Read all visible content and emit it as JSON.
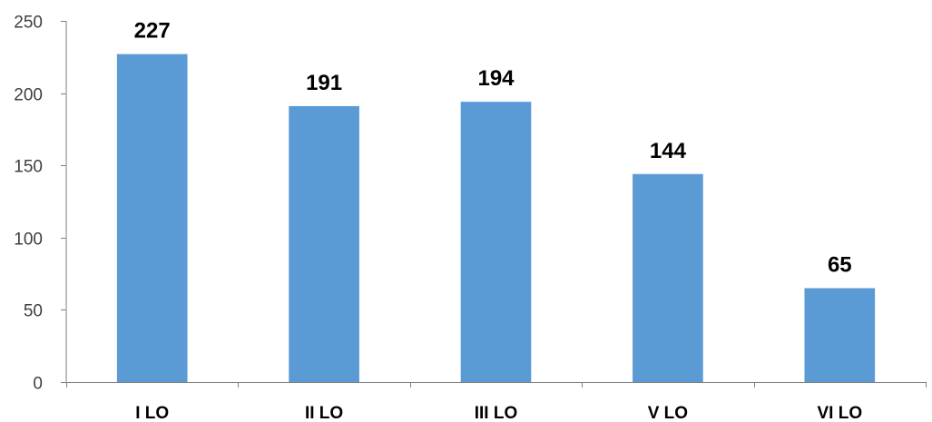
{
  "chart_data": {
    "type": "bar",
    "title": "",
    "xlabel": "",
    "ylabel": "",
    "categories": [
      "I LO",
      "II LO",
      "III LO",
      "V LO",
      "VI LO"
    ],
    "values": [
      227,
      191,
      194,
      144,
      65
    ],
    "data_labels": [
      "227",
      "191",
      "194",
      "144",
      "65"
    ],
    "ylim": [
      0,
      250
    ],
    "yticks": [
      0,
      50,
      100,
      150,
      200,
      250
    ],
    "ytick_labels": [
      "0",
      "50",
      "100",
      "150",
      "200",
      "250"
    ],
    "grid": false,
    "legend": "none",
    "bar_color": "#5b9bd5",
    "axis_color": "#808080"
  }
}
